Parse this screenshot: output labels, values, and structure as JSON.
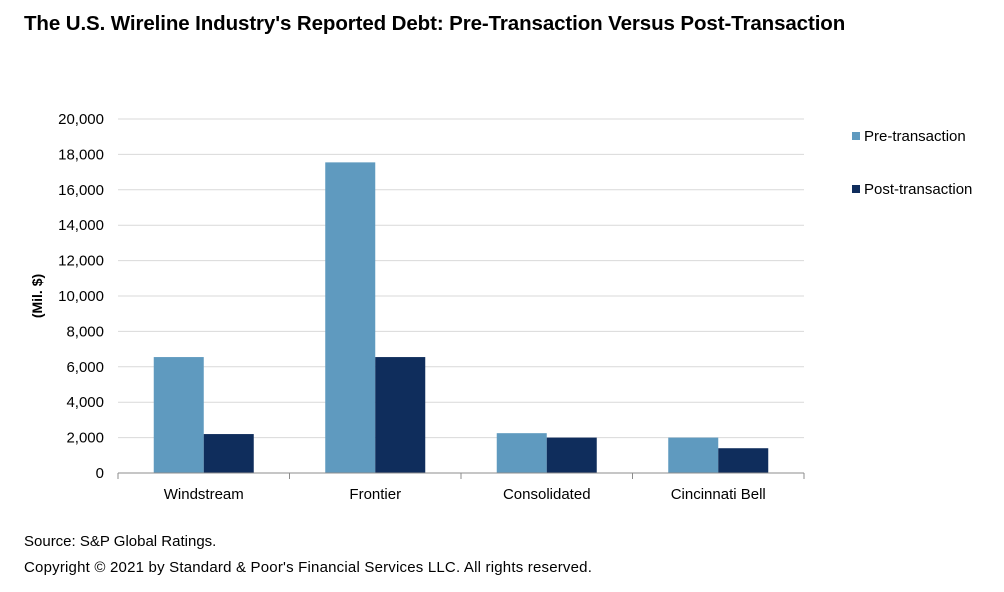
{
  "chart_data": {
    "type": "bar",
    "title": "The U.S. Wireline Industry's Reported Debt: Pre-Transaction Versus Post-Transaction",
    "ylabel": "(Mil. $)",
    "xlabel": "",
    "categories": [
      "Windstream",
      "Frontier",
      "Consolidated",
      "Cincinnati Bell"
    ],
    "series": [
      {
        "name": "Pre-transaction",
        "color": "#5f9abf",
        "values": [
          6550,
          17550,
          2250,
          2000
        ]
      },
      {
        "name": "Post-transaction",
        "color": "#0f2d5c",
        "values": [
          2200,
          6550,
          2000,
          1400
        ]
      }
    ],
    "ylim": [
      0,
      20000
    ],
    "yticks": [
      0,
      2000,
      4000,
      6000,
      8000,
      10000,
      12000,
      14000,
      16000,
      18000,
      20000
    ],
    "ytick_labels": [
      "0",
      "2,000",
      "4,000",
      "6,000",
      "8,000",
      "10,000",
      "12,000",
      "14,000",
      "16,000",
      "18,000",
      "20,000"
    ],
    "grid": true,
    "legend_position": "right"
  },
  "footer": {
    "source": "Source: S&P Global Ratings.",
    "copyright": "Copyright © 2021 by Standard & Poor's Financial Services LLC. All rights reserved."
  }
}
